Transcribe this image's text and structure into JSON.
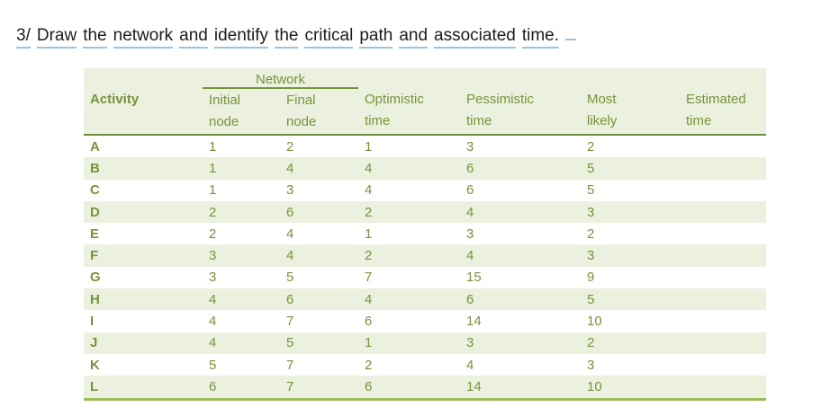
{
  "title": {
    "text": "3/ Draw the network and identify the critical path and associated time."
  },
  "table": {
    "group_header": "Network",
    "columns": [
      {
        "id": "activity",
        "line1": "Activity",
        "line2": ""
      },
      {
        "id": "initial",
        "line1": "Initial",
        "line2": "node"
      },
      {
        "id": "final",
        "line1": "Final",
        "line2": "node"
      },
      {
        "id": "optimistic",
        "line1": "Optimistic",
        "line2": "time"
      },
      {
        "id": "pessimistic",
        "line1": "Pessimistic",
        "line2": "time"
      },
      {
        "id": "most_likely",
        "line1": "Most",
        "line2": "likely"
      },
      {
        "id": "estimated",
        "line1": "Estimated",
        "line2": "time"
      }
    ],
    "rows": [
      {
        "activity": "A",
        "initial": "1",
        "final": "2",
        "optimistic": "1",
        "pessimistic": "3",
        "most_likely": "2",
        "estimated": ""
      },
      {
        "activity": "B",
        "initial": "1",
        "final": "4",
        "optimistic": "4",
        "pessimistic": "6",
        "most_likely": "5",
        "estimated": ""
      },
      {
        "activity": "C",
        "initial": "1",
        "final": "3",
        "optimistic": "4",
        "pessimistic": "6",
        "most_likely": "5",
        "estimated": ""
      },
      {
        "activity": "D",
        "initial": "2",
        "final": "6",
        "optimistic": "2",
        "pessimistic": "4",
        "most_likely": "3",
        "estimated": ""
      },
      {
        "activity": "E",
        "initial": "2",
        "final": "4",
        "optimistic": "1",
        "pessimistic": "3",
        "most_likely": "2",
        "estimated": ""
      },
      {
        "activity": "F",
        "initial": "3",
        "final": "4",
        "optimistic": "2",
        "pessimistic": "4",
        "most_likely": "3",
        "estimated": ""
      },
      {
        "activity": "G",
        "initial": "3",
        "final": "5",
        "optimistic": "7",
        "pessimistic": "15",
        "most_likely": "9",
        "estimated": ""
      },
      {
        "activity": "H",
        "initial": "4",
        "final": "6",
        "optimistic": "4",
        "pessimistic": "6",
        "most_likely": "5",
        "estimated": ""
      },
      {
        "activity": "I",
        "initial": "4",
        "final": "7",
        "optimistic": "6",
        "pessimistic": "14",
        "most_likely": "10",
        "estimated": ""
      },
      {
        "activity": "J",
        "initial": "4",
        "final": "5",
        "optimistic": "1",
        "pessimistic": "3",
        "most_likely": "2",
        "estimated": ""
      },
      {
        "activity": "K",
        "initial": "5",
        "final": "7",
        "optimistic": "2",
        "pessimistic": "4",
        "most_likely": "3",
        "estimated": ""
      },
      {
        "activity": "L",
        "initial": "6",
        "final": "7",
        "optimistic": "6",
        "pessimistic": "14",
        "most_likely": "10",
        "estimated": ""
      }
    ]
  },
  "colors": {
    "table_text_green": "#77933c",
    "band_green": "#ebf1de",
    "header_border_olive": "#6f8c3c",
    "bottom_border_olive": "#9bbb59",
    "title_text": "#1c1c1c",
    "title_underline_blue": "#9cc2e5"
  }
}
